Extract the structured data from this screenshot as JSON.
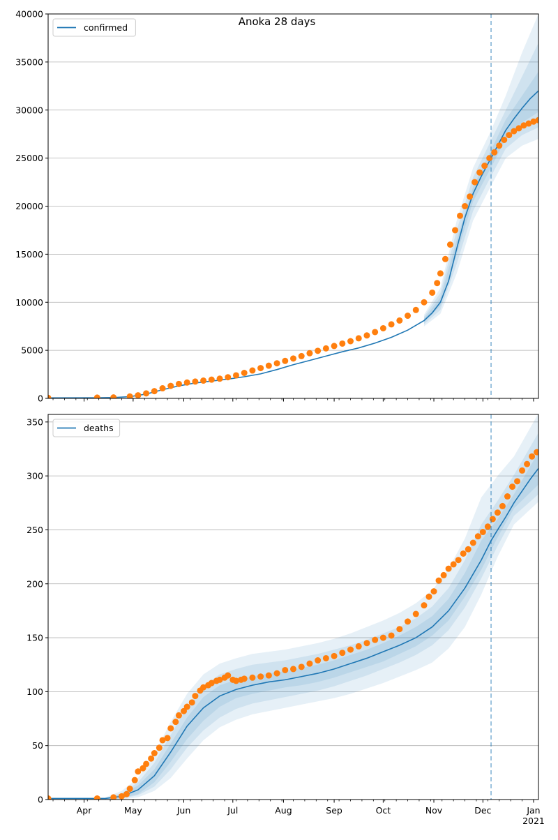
{
  "figure_title": "Anoka 28 days",
  "x_axis": {
    "month_labels": [
      "Apr",
      "May",
      "Jun",
      "Jul",
      "Aug",
      "Sep",
      "Oct",
      "Nov",
      "Dec",
      "Jan"
    ],
    "month_days": [
      22,
      52,
      83,
      113,
      144,
      175,
      205,
      236,
      266,
      297
    ],
    "year_label": "2021",
    "day_range": [
      0,
      300
    ],
    "forecast_start_day": 271
  },
  "chart_data": [
    {
      "type": "line",
      "name": "confirmed",
      "legend_label": "confirmed",
      "legend_position": "upper-left",
      "ylim": [
        0,
        40000
      ],
      "yticks": [
        0,
        5000,
        10000,
        15000,
        20000,
        25000,
        30000,
        35000,
        40000
      ],
      "grid": "horizontal",
      "model_line": {
        "days": [
          0,
          30,
          40,
          50,
          60,
          70,
          80,
          90,
          100,
          110,
          120,
          130,
          140,
          150,
          160,
          170,
          180,
          190,
          200,
          210,
          220,
          230,
          235,
          240,
          245,
          250,
          255,
          260,
          265,
          270,
          272,
          275,
          280,
          285,
          290,
          295,
          300
        ],
        "values": [
          50,
          60,
          90,
          180,
          450,
          900,
          1300,
          1600,
          1800,
          2000,
          2250,
          2550,
          3000,
          3500,
          3950,
          4400,
          4850,
          5250,
          5750,
          6350,
          7100,
          8100,
          8900,
          10000,
          12200,
          15600,
          18800,
          21300,
          23100,
          24700,
          25300,
          26300,
          27900,
          29100,
          30200,
          31200,
          32000
        ]
      },
      "bands": [
        {
          "days": [
            230,
            240,
            250,
            260,
            270,
            280,
            290,
            300
          ],
          "low": [
            7500,
            8800,
            13000,
            18500,
            21800,
            25000,
            26300,
            27000
          ],
          "high": [
            8700,
            11500,
            18500,
            24000,
            27500,
            31500,
            36000,
            40000
          ]
        },
        {
          "days": [
            230,
            240,
            250,
            260,
            270,
            280,
            290,
            300
          ],
          "low": [
            7700,
            9200,
            14000,
            19500,
            22800,
            26000,
            27400,
            28200
          ],
          "high": [
            8500,
            11000,
            17500,
            23000,
            26500,
            30000,
            33500,
            37000
          ]
        },
        {
          "days": [
            230,
            240,
            250,
            260,
            270,
            280,
            290,
            300
          ],
          "low": [
            7900,
            9600,
            15000,
            20500,
            23700,
            27000,
            28700,
            29800
          ],
          "high": [
            8300,
            10500,
            16500,
            22000,
            25500,
            29000,
            31500,
            34000
          ]
        }
      ],
      "observed": {
        "days": [
          0,
          30,
          40,
          50,
          55,
          60,
          65,
          70,
          75,
          80,
          85,
          90,
          95,
          100,
          105,
          110,
          115,
          120,
          125,
          130,
          135,
          140,
          145,
          150,
          155,
          160,
          165,
          170,
          175,
          180,
          185,
          190,
          195,
          200,
          205,
          210,
          215,
          220,
          225,
          230,
          235,
          238,
          240,
          243,
          246,
          249,
          252,
          255,
          258,
          261,
          264,
          267,
          270,
          273,
          276,
          279,
          282,
          285,
          288,
          291,
          294,
          297,
          300
        ],
        "values": [
          50,
          80,
          100,
          200,
          320,
          520,
          750,
          1050,
          1300,
          1500,
          1650,
          1750,
          1850,
          1950,
          2050,
          2200,
          2400,
          2650,
          2900,
          3150,
          3400,
          3650,
          3900,
          4150,
          4400,
          4700,
          4950,
          5200,
          5450,
          5700,
          5950,
          6250,
          6550,
          6900,
          7300,
          7700,
          8100,
          8600,
          9200,
          10000,
          11000,
          12000,
          13000,
          14500,
          16000,
          17500,
          19000,
          20000,
          21000,
          22500,
          23500,
          24200,
          25000,
          25600,
          26300,
          26900,
          27400,
          27800,
          28100,
          28400,
          28600,
          28800,
          28950
        ]
      },
      "line_color": "#1f77b4",
      "band_color": "#1f77b4",
      "marker_color": "#ff7f0e"
    },
    {
      "type": "line",
      "name": "deaths",
      "legend_label": "deaths",
      "legend_position": "upper-left",
      "ylim": [
        0,
        357
      ],
      "yticks": [
        0,
        50,
        100,
        150,
        200,
        250,
        300,
        350
      ],
      "grid": "horizontal",
      "model_line": {
        "days": [
          0,
          35,
          45,
          55,
          65,
          75,
          85,
          95,
          105,
          115,
          125,
          135,
          145,
          155,
          165,
          175,
          185,
          195,
          205,
          215,
          225,
          235,
          245,
          255,
          265,
          271,
          275,
          280,
          285,
          290,
          295,
          300
        ],
        "values": [
          1,
          1,
          3,
          9,
          22,
          44,
          68,
          85,
          96,
          102,
          106,
          109,
          111,
          114,
          117,
          121,
          126,
          131,
          137,
          143,
          150,
          160,
          175,
          196,
          222,
          240,
          250,
          262,
          275,
          286,
          297,
          307
        ]
      },
      "bands": [
        {
          "days": [
            35,
            45,
            55,
            65,
            75,
            85,
            95,
            105,
            115,
            125,
            135,
            145,
            155,
            165,
            175,
            185,
            195,
            205,
            215,
            225,
            235,
            245,
            255,
            265,
            275,
            285,
            300
          ],
          "low": [
            0,
            0,
            2,
            8,
            20,
            38,
            55,
            67,
            74,
            79,
            82,
            85,
            88,
            91,
            94,
            98,
            103,
            108,
            114,
            120,
            127,
            140,
            160,
            190,
            225,
            255,
            276
          ],
          "high": [
            2,
            8,
            20,
            42,
            72,
            98,
            116,
            126,
            131,
            135,
            137,
            139,
            142,
            145,
            149,
            154,
            160,
            166,
            173,
            182,
            194,
            214,
            242,
            280,
            300,
            318,
            358
          ]
        },
        {
          "days": [
            35,
            45,
            55,
            65,
            75,
            85,
            95,
            105,
            115,
            125,
            135,
            145,
            155,
            165,
            175,
            185,
            195,
            205,
            215,
            225,
            235,
            245,
            255,
            265,
            275,
            285,
            300
          ],
          "low": [
            0,
            1,
            4,
            12,
            28,
            48,
            64,
            76,
            84,
            89,
            92,
            95,
            98,
            101,
            105,
            110,
            115,
            121,
            127,
            134,
            143,
            157,
            178,
            205,
            235,
            263,
            283
          ],
          "high": [
            1,
            6,
            16,
            34,
            60,
            86,
            105,
            116,
            121,
            125,
            127,
            129,
            132,
            135,
            139,
            143,
            148,
            154,
            160,
            168,
            179,
            196,
            222,
            255,
            277,
            301,
            340
          ]
        },
        {
          "days": [
            35,
            45,
            55,
            65,
            75,
            85,
            95,
            105,
            115,
            125,
            135,
            145,
            155,
            165,
            175,
            185,
            195,
            205,
            215,
            225,
            235,
            245,
            255,
            265,
            275,
            285,
            300
          ],
          "low": [
            0,
            1,
            5,
            16,
            35,
            56,
            73,
            86,
            94,
            98,
            101,
            104,
            106,
            109,
            113,
            118,
            123,
            128,
            135,
            142,
            152,
            166,
            188,
            213,
            243,
            270,
            292
          ],
          "high": [
            1,
            5,
            13,
            28,
            52,
            76,
            95,
            106,
            111,
            114,
            117,
            119,
            122,
            125,
            129,
            134,
            139,
            145,
            152,
            160,
            170,
            186,
            210,
            240,
            260,
            283,
            322
          ]
        }
      ],
      "observed": {
        "days": [
          0,
          30,
          40,
          45,
          48,
          50,
          53,
          55,
          58,
          60,
          63,
          65,
          68,
          70,
          73,
          75,
          78,
          80,
          83,
          85,
          88,
          90,
          93,
          95,
          98,
          100,
          103,
          105,
          108,
          110,
          113,
          115,
          118,
          120,
          125,
          130,
          135,
          140,
          145,
          150,
          155,
          160,
          165,
          170,
          175,
          180,
          185,
          190,
          195,
          200,
          205,
          210,
          215,
          220,
          225,
          230,
          233,
          236,
          239,
          242,
          245,
          248,
          251,
          254,
          257,
          260,
          263,
          266,
          269,
          272,
          275,
          278,
          281,
          284,
          287,
          290,
          293,
          296,
          299
        ],
        "values": [
          1,
          1,
          2,
          3,
          5,
          10,
          18,
          26,
          29,
          33,
          38,
          43,
          48,
          55,
          57,
          66,
          72,
          78,
          82,
          86,
          90,
          96,
          101,
          104,
          106,
          108,
          110,
          111,
          113,
          115,
          111,
          110,
          111,
          112,
          113,
          114,
          115,
          117,
          120,
          121,
          123,
          126,
          129,
          131,
          133,
          136,
          139,
          142,
          145,
          148,
          150,
          152,
          158,
          165,
          172,
          180,
          188,
          193,
          203,
          208,
          214,
          218,
          222,
          228,
          232,
          238,
          244,
          248,
          253,
          260,
          266,
          272,
          281,
          290,
          295,
          305,
          311,
          318,
          322
        ]
      },
      "line_color": "#1f77b4",
      "band_color": "#1f77b4",
      "marker_color": "#ff7f0e"
    }
  ]
}
